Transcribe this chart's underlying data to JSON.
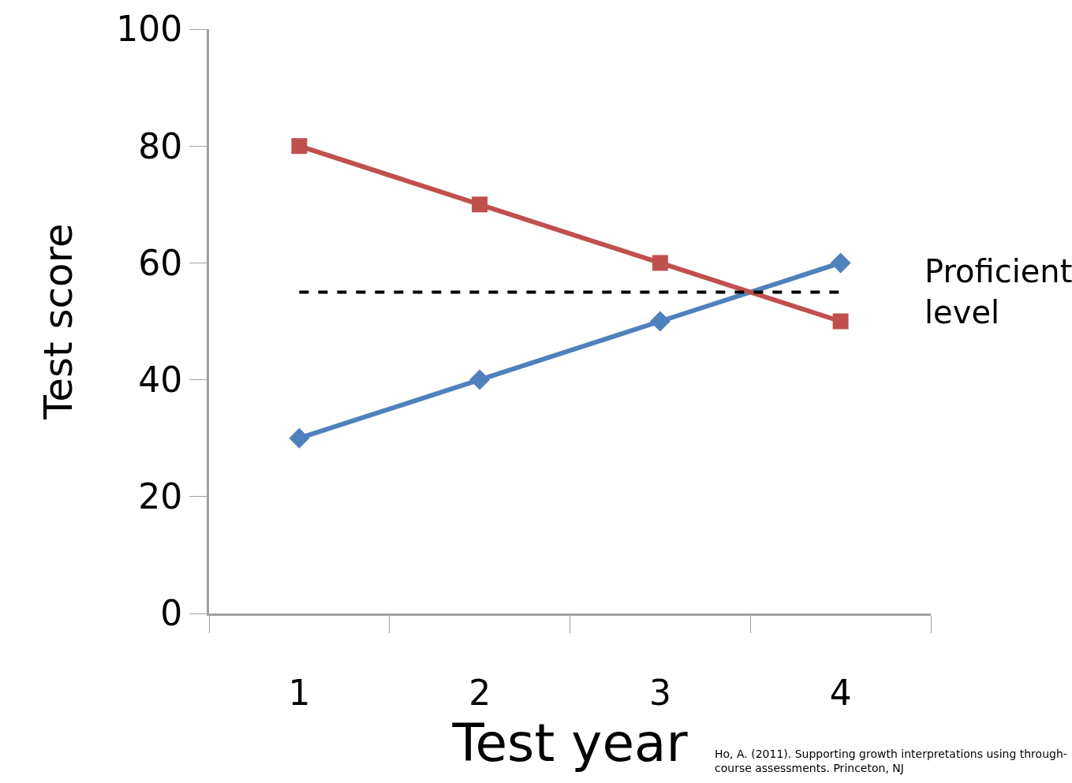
{
  "chart_data": {
    "type": "line",
    "xlabel": "Test year",
    "ylabel": "Test score",
    "categories": [
      "1",
      "2",
      "3",
      "4"
    ],
    "series": [
      {
        "color": "#4f81bd",
        "marker": "diamond",
        "values": [
          30,
          40,
          50,
          60
        ]
      },
      {
        "color": "#c0504d",
        "marker": "square",
        "values": [
          80,
          70,
          60,
          50
        ]
      }
    ],
    "ylim": [
      0,
      100
    ],
    "yticks": [
      0,
      20,
      40,
      60,
      80,
      100
    ],
    "line_style": "solid",
    "ref_lines": [
      {
        "axis": "y",
        "value": 55,
        "label": "Proficient\nlevel",
        "color": "#000000",
        "line_style": "dashed"
      }
    ],
    "annotations": [
      "Ho, A. (2011). Supporting growth interpretations using through-\ncourse assessments. Princeton, NJ"
    ]
  }
}
